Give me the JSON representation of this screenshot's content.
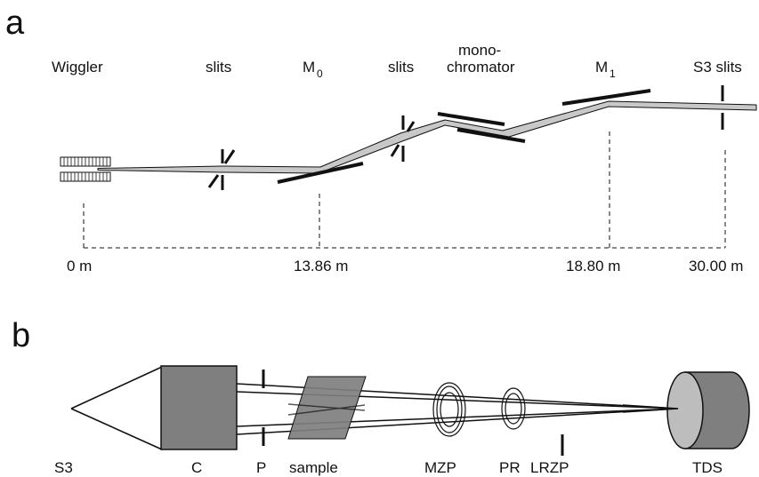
{
  "panel_a": {
    "letter": "a",
    "labels": {
      "wiggler": "Wiggler",
      "slits1": "slits",
      "m0_main": "M",
      "m0_sub": "0",
      "slits2": "slits",
      "mono_line1": "mono-",
      "mono_line2": "chromator",
      "m1_main": "M",
      "m1_sub": "1",
      "s3slits": "S3 slits"
    },
    "distances": [
      "0 m",
      "13.86 m",
      "18.80 m",
      "30.00 m"
    ]
  },
  "panel_b": {
    "letter": "b",
    "labels": {
      "s3": "S3",
      "c": "C",
      "p": "P",
      "sample": "sample",
      "mzp": "MZP",
      "pr": "PR",
      "lrzp": "LRZP",
      "tds": "TDS"
    }
  },
  "colors": {
    "ink": "#111111",
    "beam_fill": "#c8c8c8",
    "component_fill": "#7f7f7f",
    "detector_face": "#bdbdbd"
  }
}
